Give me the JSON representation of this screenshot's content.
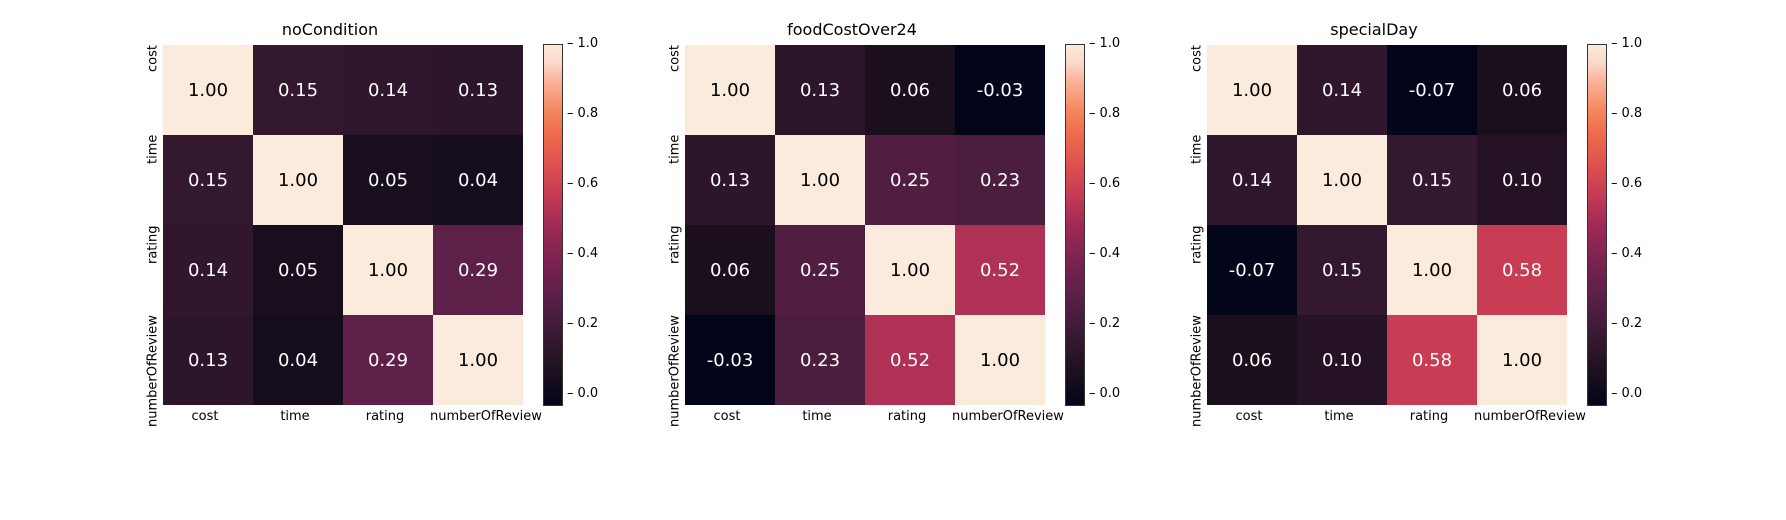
{
  "cell_size": 90,
  "colorbar_height": 360,
  "font": {
    "title_size": 16,
    "label_size": 13,
    "cell_size": 18
  },
  "colormap": {
    "name": "rocket",
    "vmin": -0.03,
    "vmax": 1.0,
    "stops": [
      {
        "t": 0.0,
        "color": "#03051a"
      },
      {
        "t": 0.1,
        "color": "#1e111f"
      },
      {
        "t": 0.2,
        "color": "#3a1a34"
      },
      {
        "t": 0.3,
        "color": "#5a1f48"
      },
      {
        "t": 0.4,
        "color": "#7c2250"
      },
      {
        "t": 0.5,
        "color": "#9f2a55"
      },
      {
        "t": 0.58,
        "color": "#c43a55"
      },
      {
        "t": 0.66,
        "color": "#de4e50"
      },
      {
        "t": 0.75,
        "color": "#ee6a4c"
      },
      {
        "t": 0.82,
        "color": "#f58860"
      },
      {
        "t": 0.9,
        "color": "#f9b39a"
      },
      {
        "t": 0.95,
        "color": "#fbd7cc"
      },
      {
        "t": 1.0,
        "color": "#faebdd"
      }
    ],
    "light_text_threshold": 0.7,
    "light_text_color": "#ffffff",
    "dark_text_color": "#000000"
  },
  "colorbar_ticks": [
    {
      "value": 0.0,
      "label": "0.0"
    },
    {
      "value": 0.2,
      "label": "0.2"
    },
    {
      "value": 0.4,
      "label": "0.4"
    },
    {
      "value": 0.6,
      "label": "0.6"
    },
    {
      "value": 0.8,
      "label": "0.8"
    },
    {
      "value": 1.0,
      "label": "1.0"
    }
  ],
  "labels": [
    "cost",
    "time",
    "rating",
    "numberOfReview"
  ],
  "panels": [
    {
      "title": "noCondition",
      "matrix": [
        [
          1.0,
          0.15,
          0.14,
          0.13
        ],
        [
          0.15,
          1.0,
          0.05,
          0.04
        ],
        [
          0.14,
          0.05,
          1.0,
          0.29
        ],
        [
          0.13,
          0.04,
          0.29,
          1.0
        ]
      ]
    },
    {
      "title": "foodCostOver24",
      "matrix": [
        [
          1.0,
          0.13,
          0.06,
          -0.03
        ],
        [
          0.13,
          1.0,
          0.25,
          0.23
        ],
        [
          0.06,
          0.25,
          1.0,
          0.52
        ],
        [
          -0.03,
          0.23,
          0.52,
          1.0
        ]
      ]
    },
    {
      "title": "specialDay",
      "matrix": [
        [
          1.0,
          0.14,
          -0.07,
          0.06
        ],
        [
          0.14,
          1.0,
          0.15,
          0.1
        ],
        [
          -0.07,
          0.15,
          1.0,
          0.58
        ],
        [
          0.06,
          0.1,
          0.58,
          1.0
        ]
      ]
    }
  ]
}
